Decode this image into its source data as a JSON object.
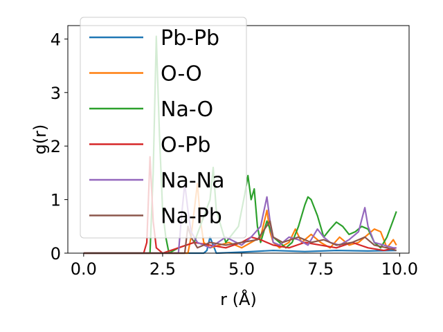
{
  "chart_data": {
    "type": "line",
    "title": "",
    "xlabel": "r (Å)",
    "ylabel": "g(r)",
    "xlim": [
      -0.5,
      10.3
    ],
    "ylim": [
      0,
      4.25
    ],
    "xticks": [
      0.0,
      2.5,
      5.0,
      7.5,
      10.0
    ],
    "xtick_labels": [
      "0.0",
      "2.5",
      "5.0",
      "7.5",
      "10.0"
    ],
    "yticks": [
      0,
      1,
      2,
      3,
      4
    ],
    "ytick_labels": [
      "0",
      "1",
      "2",
      "3",
      "4"
    ],
    "grid": false,
    "legend_position": "top-left",
    "series": [
      {
        "name": "Pb-Pb",
        "color": "#1f77b4",
        "x": [
          0.0,
          3.8,
          3.9,
          4.0,
          4.1,
          4.2,
          5.0,
          6.0,
          7.0,
          8.0,
          9.0,
          9.9
        ],
        "y": [
          0,
          0,
          0.05,
          0.3,
          0.15,
          0,
          0.02,
          0.05,
          0.03,
          0.05,
          0.04,
          0.05
        ]
      },
      {
        "name": "O-O",
        "color": "#ff7f0e",
        "x": [
          0.0,
          3.3,
          3.4,
          3.5,
          3.6,
          3.7,
          3.8,
          4.0,
          4.3,
          4.6,
          5.0,
          5.3,
          5.6,
          5.8,
          5.9,
          6.0,
          6.2,
          6.5,
          6.7,
          6.9,
          7.2,
          7.5,
          7.8,
          8.1,
          8.4,
          8.7,
          9.0,
          9.2,
          9.4,
          9.6,
          9.8,
          9.9
        ],
        "y": [
          0,
          0,
          0.3,
          0.8,
          1.3,
          0.6,
          0.2,
          0.1,
          0.15,
          0.2,
          0.1,
          0.2,
          0.3,
          0.8,
          0.4,
          0.2,
          0.1,
          0.2,
          0.45,
          0.2,
          0.35,
          0.2,
          0.1,
          0.3,
          0.15,
          0.2,
          0.35,
          0.45,
          0.4,
          0.1,
          0.25,
          0.15
        ]
      },
      {
        "name": "Na-O",
        "color": "#2ca02c",
        "x": [
          0.0,
          2.1,
          2.2,
          2.3,
          2.4,
          2.5,
          2.6,
          2.7,
          3.0,
          3.5,
          4.0,
          4.1,
          4.2,
          4.5,
          4.9,
          5.1,
          5.2,
          5.3,
          5.4,
          5.5,
          5.6,
          5.8,
          6.0,
          6.2,
          6.4,
          6.6,
          6.8,
          7.0,
          7.1,
          7.2,
          7.4,
          7.6,
          7.8,
          8.0,
          8.2,
          8.4,
          8.6,
          8.8,
          9.0,
          9.2,
          9.4,
          9.6,
          9.8,
          9.9
        ],
        "y": [
          0,
          0,
          1.5,
          4.05,
          2.2,
          0.8,
          0.3,
          0,
          0.1,
          0.2,
          1.0,
          1.6,
          0.8,
          0.2,
          0.5,
          1.1,
          1.45,
          1.0,
          1.2,
          0.5,
          0.2,
          0.6,
          0.3,
          0.2,
          0.1,
          0.2,
          0.5,
          0.9,
          1.05,
          1.0,
          0.7,
          0.3,
          0.45,
          0.58,
          0.5,
          0.35,
          0.4,
          0.5,
          0.45,
          0.2,
          0.1,
          0.3,
          0.62,
          0.78
        ]
      },
      {
        "name": "O-Pb",
        "color": "#d62728",
        "x": [
          0.0,
          1.9,
          2.0,
          2.1,
          2.2,
          2.3,
          2.5,
          3.0,
          3.5,
          4.0,
          4.5,
          5.0,
          5.3,
          5.6,
          6.0,
          6.5,
          7.0,
          7.5,
          8.0,
          8.5,
          9.0,
          9.5,
          9.9
        ],
        "y": [
          0,
          0,
          0.2,
          1.8,
          0.6,
          0.1,
          0,
          0.1,
          0.2,
          0.15,
          0.1,
          0.2,
          0.3,
          0.25,
          0.15,
          0.1,
          0.2,
          0.15,
          0.1,
          0.2,
          0.1,
          0.05,
          0.1
        ]
      },
      {
        "name": "Na-Na",
        "color": "#9467bd",
        "x": [
          0.0,
          3.0,
          3.1,
          3.2,
          3.3,
          3.4,
          3.6,
          4.0,
          4.5,
          5.0,
          5.3,
          5.6,
          5.8,
          5.9,
          6.0,
          6.2,
          6.5,
          6.8,
          7.1,
          7.4,
          7.6,
          7.8,
          8.1,
          8.4,
          8.7,
          8.9,
          9.0,
          9.2,
          9.5,
          9.8,
          9.9
        ],
        "y": [
          0,
          0,
          0.7,
          1.3,
          0.8,
          0.4,
          0.2,
          0.1,
          0.3,
          0.15,
          0.3,
          0.5,
          1.05,
          0.6,
          0.2,
          0.15,
          0.3,
          0.25,
          0.15,
          0.45,
          0.3,
          0.2,
          0.15,
          0.25,
          0.4,
          0.85,
          0.5,
          0.2,
          0.15,
          0.1,
          0.1
        ]
      },
      {
        "name": "Na-Pb",
        "color": "#8c564b",
        "x": [
          0.0,
          3.2,
          3.3,
          3.4,
          3.6,
          4.0,
          4.5,
          5.0,
          5.5,
          5.9,
          6.0,
          6.3,
          6.8,
          7.2,
          7.6,
          8.0,
          8.5,
          8.9,
          9.2,
          9.6,
          9.9
        ],
        "y": [
          0,
          0,
          0.5,
          0.3,
          0.1,
          0.2,
          0.15,
          0.2,
          0.25,
          0.6,
          0.3,
          0.2,
          0.3,
          0.2,
          0.25,
          0.15,
          0.2,
          0.3,
          0.15,
          0.1,
          0.05
        ]
      }
    ]
  }
}
